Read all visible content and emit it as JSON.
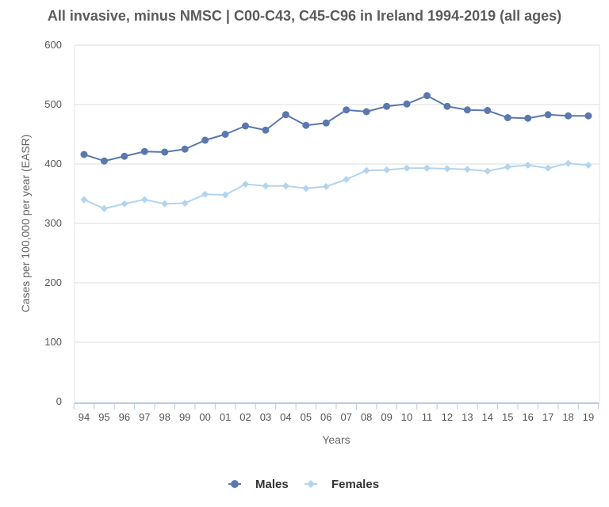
{
  "colors": {
    "males": "#5a78ad",
    "females": "#b3d4ee",
    "grid": "#dddddd",
    "axis": "#b6cbe3"
  },
  "chart_data": {
    "type": "line",
    "title": "All invasive, minus NMSC | C00-C43, C45-C96 in Ireland 1994-2019 (all ages)",
    "xlabel": "Years",
    "ylabel": "Cases per 100,000 per year (EASR)",
    "ylim": [
      0,
      600
    ],
    "yticks": [
      0,
      100,
      200,
      300,
      400,
      500,
      600
    ],
    "grid": true,
    "legend_position": "bottom-center",
    "categories": [
      "94",
      "95",
      "96",
      "97",
      "98",
      "99",
      "00",
      "01",
      "02",
      "03",
      "04",
      "05",
      "06",
      "07",
      "08",
      "09",
      "10",
      "11",
      "12",
      "13",
      "14",
      "15",
      "16",
      "17",
      "18",
      "19"
    ],
    "series": [
      {
        "name": "Males",
        "marker": "circle",
        "values": [
          416,
          405,
          413,
          421,
          420,
          425,
          440,
          450,
          464,
          457,
          483,
          465,
          469,
          491,
          488,
          497,
          501,
          515,
          497,
          491,
          490,
          478,
          477,
          483,
          481,
          481
        ]
      },
      {
        "name": "Females",
        "marker": "diamond",
        "values": [
          340,
          325,
          333,
          340,
          333,
          334,
          349,
          348,
          366,
          363,
          363,
          359,
          362,
          374,
          389,
          390,
          393,
          393,
          392,
          391,
          388,
          395,
          398,
          393,
          401,
          398
        ]
      }
    ]
  }
}
